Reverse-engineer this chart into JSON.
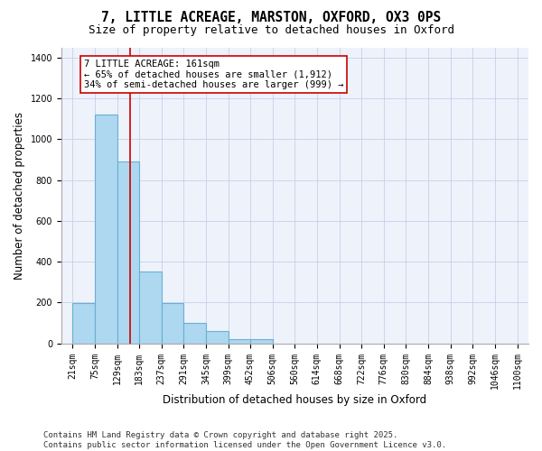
{
  "title": "7, LITTLE ACREAGE, MARSTON, OXFORD, OX3 0PS",
  "subtitle": "Size of property relative to detached houses in Oxford",
  "xlabel": "Distribution of detached houses by size in Oxford",
  "ylabel": "Number of detached properties",
  "bar_values": [
    195,
    1120,
    890,
    350,
    195,
    100,
    60,
    20,
    20
  ],
  "bar_left_edges": [
    21,
    75,
    129,
    183,
    237,
    291,
    345,
    399,
    453
  ],
  "bin_width": 54,
  "xtick_labels": [
    "21sqm",
    "75sqm",
    "129sqm",
    "183sqm",
    "237sqm",
    "291sqm",
    "345sqm",
    "399sqm",
    "452sqm",
    "506sqm",
    "560sqm",
    "614sqm",
    "668sqm",
    "722sqm",
    "776sqm",
    "830sqm",
    "884sqm",
    "938sqm",
    "992sqm",
    "1046sqm",
    "1100sqm"
  ],
  "xtick_positions": [
    21,
    75,
    129,
    183,
    237,
    291,
    345,
    399,
    452,
    506,
    560,
    614,
    668,
    722,
    776,
    830,
    884,
    938,
    992,
    1046,
    1100
  ],
  "ylim": [
    0,
    1450
  ],
  "yticks": [
    0,
    200,
    400,
    600,
    800,
    1000,
    1200,
    1400
  ],
  "bar_color": "#add8f0",
  "bar_edge_color": "#6ab0d4",
  "background_color": "#eef2fb",
  "grid_color": "#c8d0e8",
  "vline_x": 161,
  "vline_color": "#cc0000",
  "annotation_text": "7 LITTLE ACREAGE: 161sqm\n← 65% of detached houses are smaller (1,912)\n34% of semi-detached houses are larger (999) →",
  "annotation_box_color": "#cc0000",
  "footnote": "Contains HM Land Registry data © Crown copyright and database right 2025.\nContains public sector information licensed under the Open Government Licence v3.0.",
  "title_fontsize": 10.5,
  "subtitle_fontsize": 9,
  "axis_label_fontsize": 8.5,
  "tick_fontsize": 7,
  "annotation_fontsize": 7.5,
  "footnote_fontsize": 6.5
}
